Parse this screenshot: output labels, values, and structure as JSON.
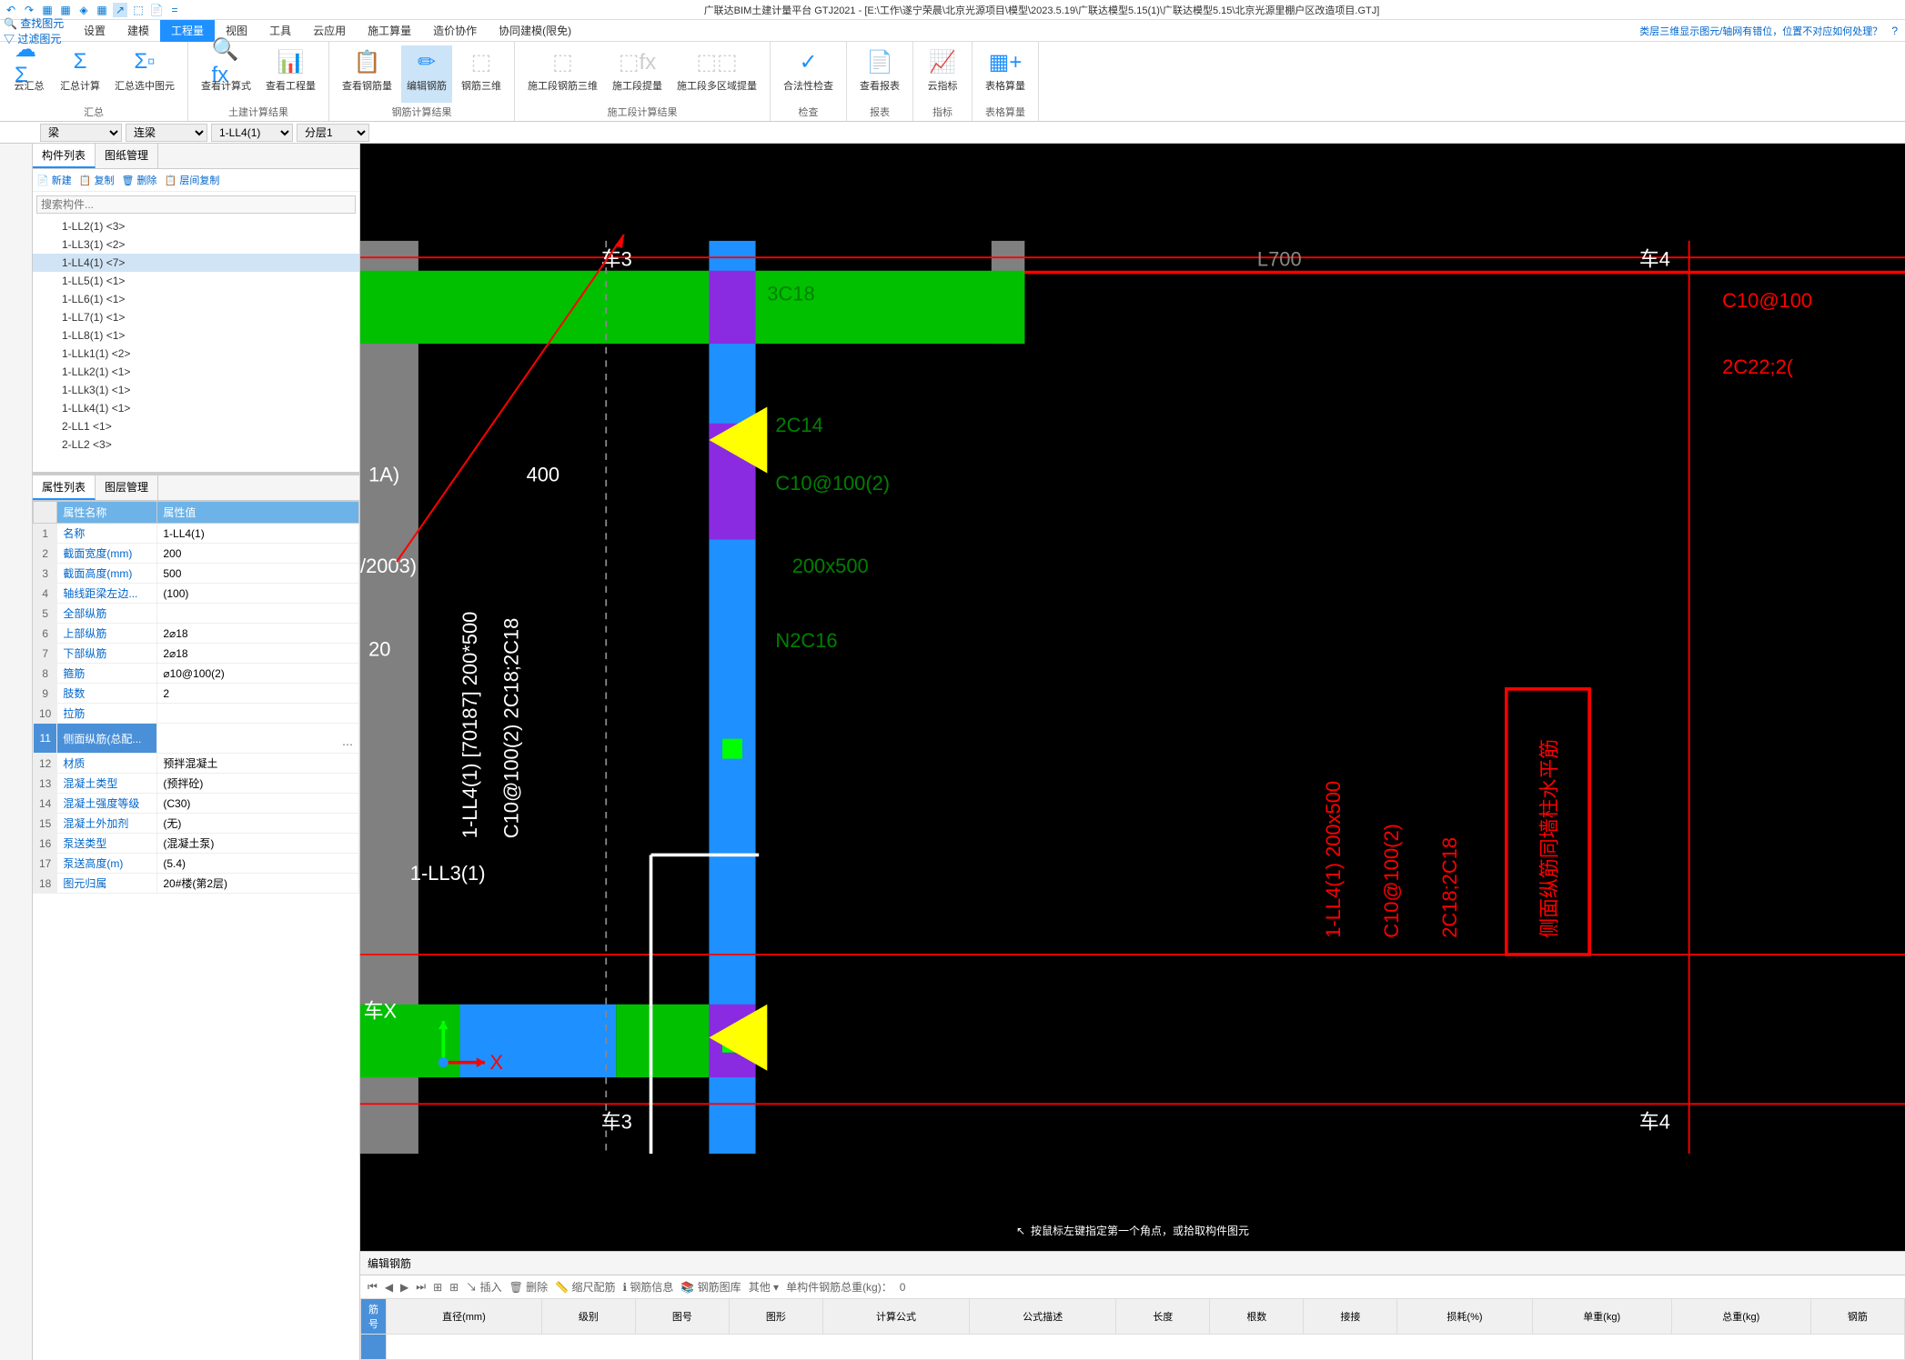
{
  "app": {
    "title": "广联达BIM土建计量平台 GTJ2021 - [E:\\工作\\遂宁荣晨\\北京光源项目\\模型\\2023.5.19\\广联达模型5.15(1)\\广联达模型5.15\\北京光源里棚户区改造项目.GTJ]"
  },
  "qat": [
    "↶",
    "↷",
    "▦",
    "▦",
    "◈",
    "▦",
    "↗",
    "⬚",
    "📄",
    "="
  ],
  "leftQuick": {
    "find": "🔍 查找图元",
    "filter": "▽ 过滤图元"
  },
  "menu": {
    "items": [
      "设置",
      "建模",
      "工程量",
      "视图",
      "工具",
      "云应用",
      "施工算量",
      "造价协作",
      "协同建模(限免)"
    ],
    "activeIndex": 2,
    "help": "类层三维显示图元/轴网有错位，位置不对应如何处理？",
    "helpIcon": "?"
  },
  "ribbon": {
    "groups": [
      {
        "label": "汇总",
        "buttons": [
          {
            "icon": "☁Σ",
            "label": "云汇总",
            "color": "#1e90ff"
          },
          {
            "icon": "Σ",
            "label": "汇总计算",
            "color": "#1e90ff"
          },
          {
            "icon": "Σ▫",
            "label": "汇总选中图元",
            "color": "#1e90ff"
          }
        ]
      },
      {
        "label": "土建计算结果",
        "buttons": [
          {
            "icon": "🔍fx",
            "label": "查看计算式",
            "color": "#1e90ff"
          },
          {
            "icon": "📊",
            "label": "查看工程量",
            "color": "#1e90ff"
          }
        ]
      },
      {
        "label": "钢筋计算结果",
        "buttons": [
          {
            "icon": "📋",
            "label": "查看钢筋量",
            "color": "#1e90ff"
          },
          {
            "icon": "✏",
            "label": "编辑钢筋",
            "color": "#1e90ff",
            "active": true
          },
          {
            "icon": "⬚",
            "label": "钢筋三维",
            "color": "#ccc"
          }
        ]
      },
      {
        "label": "施工段计算结果",
        "buttons": [
          {
            "icon": "⬚",
            "label": "施工段钢筋三维",
            "color": "#ccc"
          },
          {
            "icon": "⬚fx",
            "label": "施工段提量",
            "color": "#ccc"
          },
          {
            "icon": "⬚⬚",
            "label": "施工段多区域提量",
            "color": "#ccc"
          }
        ]
      },
      {
        "label": "检查",
        "buttons": [
          {
            "icon": "✓",
            "label": "合法性检查",
            "color": "#1e90ff"
          }
        ]
      },
      {
        "label": "报表",
        "buttons": [
          {
            "icon": "📄",
            "label": "查看报表",
            "color": "#1e90ff"
          }
        ]
      },
      {
        "label": "指标",
        "buttons": [
          {
            "icon": "📈",
            "label": "云指标",
            "color": "#1e90ff"
          }
        ]
      },
      {
        "label": "表格算量",
        "buttons": [
          {
            "icon": "▦+",
            "label": "表格算量",
            "color": "#1e90ff"
          }
        ]
      }
    ]
  },
  "selectors": {
    "category": "梁",
    "subcategory": "连梁",
    "component": "1-LL4(1)",
    "layer": "分层1"
  },
  "componentPanel": {
    "tabs": [
      "构件列表",
      "图纸管理"
    ],
    "activeTab": 0,
    "toolbar": {
      "new": "📄 新建",
      "copy": "📋 复制",
      "delete": "🗑 删除",
      "layerCopy": "📋 层间复制"
    },
    "searchPlaceholder": "搜索构件...",
    "items": [
      {
        "label": "1-LL2(1) <3>"
      },
      {
        "label": "1-LL3(1) <2>"
      },
      {
        "label": "1-LL4(1) <7>",
        "selected": true
      },
      {
        "label": "1-LL5(1) <1>"
      },
      {
        "label": "1-LL6(1) <1>"
      },
      {
        "label": "1-LL7(1) <1>"
      },
      {
        "label": "1-LL8(1) <1>"
      },
      {
        "label": "1-LLk1(1) <2>"
      },
      {
        "label": "1-LLk2(1) <1>"
      },
      {
        "label": "1-LLk3(1) <1>"
      },
      {
        "label": "1-LLk4(1) <1>"
      },
      {
        "label": "2-LL1 <1>"
      },
      {
        "label": "2-LL2 <3>"
      }
    ]
  },
  "propertyPanel": {
    "tabs": [
      "属性列表",
      "图层管理"
    ],
    "activeTab": 0,
    "headers": [
      "",
      "属性名称",
      "属性值"
    ],
    "rows": [
      {
        "n": "1",
        "name": "名称",
        "value": "1-LL4(1)"
      },
      {
        "n": "2",
        "name": "截面宽度(mm)",
        "value": "200"
      },
      {
        "n": "3",
        "name": "截面高度(mm)",
        "value": "500"
      },
      {
        "n": "4",
        "name": "轴线距梁左边...",
        "value": "(100)"
      },
      {
        "n": "5",
        "name": "全部纵筋",
        "value": ""
      },
      {
        "n": "6",
        "name": "上部纵筋",
        "value": "2⌀18"
      },
      {
        "n": "7",
        "name": "下部纵筋",
        "value": "2⌀18"
      },
      {
        "n": "8",
        "name": "箍筋",
        "value": "⌀10@100(2)"
      },
      {
        "n": "9",
        "name": "肢数",
        "value": "2"
      },
      {
        "n": "10",
        "name": "拉筋",
        "value": ""
      },
      {
        "n": "11",
        "name": "侧面纵筋(总配...",
        "value": "",
        "selected": true,
        "editing": true
      },
      {
        "n": "12",
        "name": "材质",
        "value": "预拌混凝土"
      },
      {
        "n": "13",
        "name": "混凝土类型",
        "value": "(预拌砼)"
      },
      {
        "n": "14",
        "name": "混凝土强度等级",
        "value": "(C30)"
      },
      {
        "n": "15",
        "name": "混凝土外加剂",
        "value": "(无)"
      },
      {
        "n": "16",
        "name": "泵送类型",
        "value": "(混凝土泵)"
      },
      {
        "n": "17",
        "name": "泵送高度(m)",
        "value": "(5.4)"
      },
      {
        "n": "18",
        "name": "图元归属",
        "value": "20#楼(第2层)"
      }
    ]
  },
  "canvas": {
    "axisLabel1": "车3",
    "axisLabel2": "车4",
    "axisLabel3": "车X",
    "texts": {
      "t1": "1-LL4(1) [70187] 200*500",
      "t2": "C10@100(2) 2C18;2C18",
      "t3": "1A)",
      "t4": "/2003)",
      "t5": "20",
      "t6": "1-LL3(1)",
      "t7": "3C18",
      "t8": "2C14",
      "t9": "C10@100(2)",
      "t10": "200x500",
      "t11": "N2C16",
      "t12": "L700",
      "t13": "C10@100",
      "t14": "2C22;2(",
      "t15": "400",
      "t16": "1-LL4(1) 200x500",
      "t17": "C10@100(2)",
      "t18": "2C18;2C18",
      "t19": "侧面纵筋同墙柱水平筋"
    },
    "hint": "按鼠标左键指定第一个角点，或拾取构件图元",
    "colors": {
      "bg": "#000000",
      "green": "#00ff00",
      "blue": "#1e90ff",
      "purple": "#8a2be2",
      "yellow": "#ffff00",
      "red": "#ff0000",
      "gray": "#808080",
      "white": "#ffffff",
      "darkgreen": "#008000"
    }
  },
  "rebarPanel": {
    "title": "编辑钢筋",
    "insertBtn": "插入",
    "deleteBtn": "删除",
    "scaleBtn": "缩尺配筋",
    "infoBtn": "钢筋信息",
    "libBtn": "钢筋图库",
    "otherBtn": "其他",
    "totalLabel": "单构件钢筋总重(kg)：",
    "totalValue": "0",
    "headers": [
      "筋号",
      "直径(mm)",
      "级别",
      "图号",
      "图形",
      "计算公式",
      "公式描述",
      "长度",
      "根数",
      "接接",
      "损耗(%)",
      "单重(kg)",
      "总重(kg)",
      "钢筋"
    ]
  }
}
